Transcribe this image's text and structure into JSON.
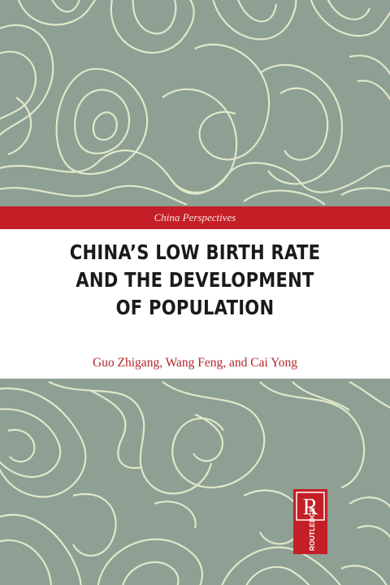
{
  "cover": {
    "series": "China Perspectives",
    "title_lines": [
      "CHINA’S LOW BIRTH RATE",
      "AND THE DEVELOPMENT",
      "OF POPULATION"
    ],
    "authors": "Guo Zhigang, Wang Feng, and Cai Yong",
    "publisher_logo_text": "ROUTLEDGE"
  },
  "colors": {
    "background": "#8e9f93",
    "pattern_line": "#dfe8c9",
    "band_red": "#c41f26",
    "title_panel": "#ffffff",
    "author_red": "#b2262c"
  },
  "icons": {
    "publisher": "routledge-logo-icon",
    "pattern": "contour-line-pattern"
  }
}
